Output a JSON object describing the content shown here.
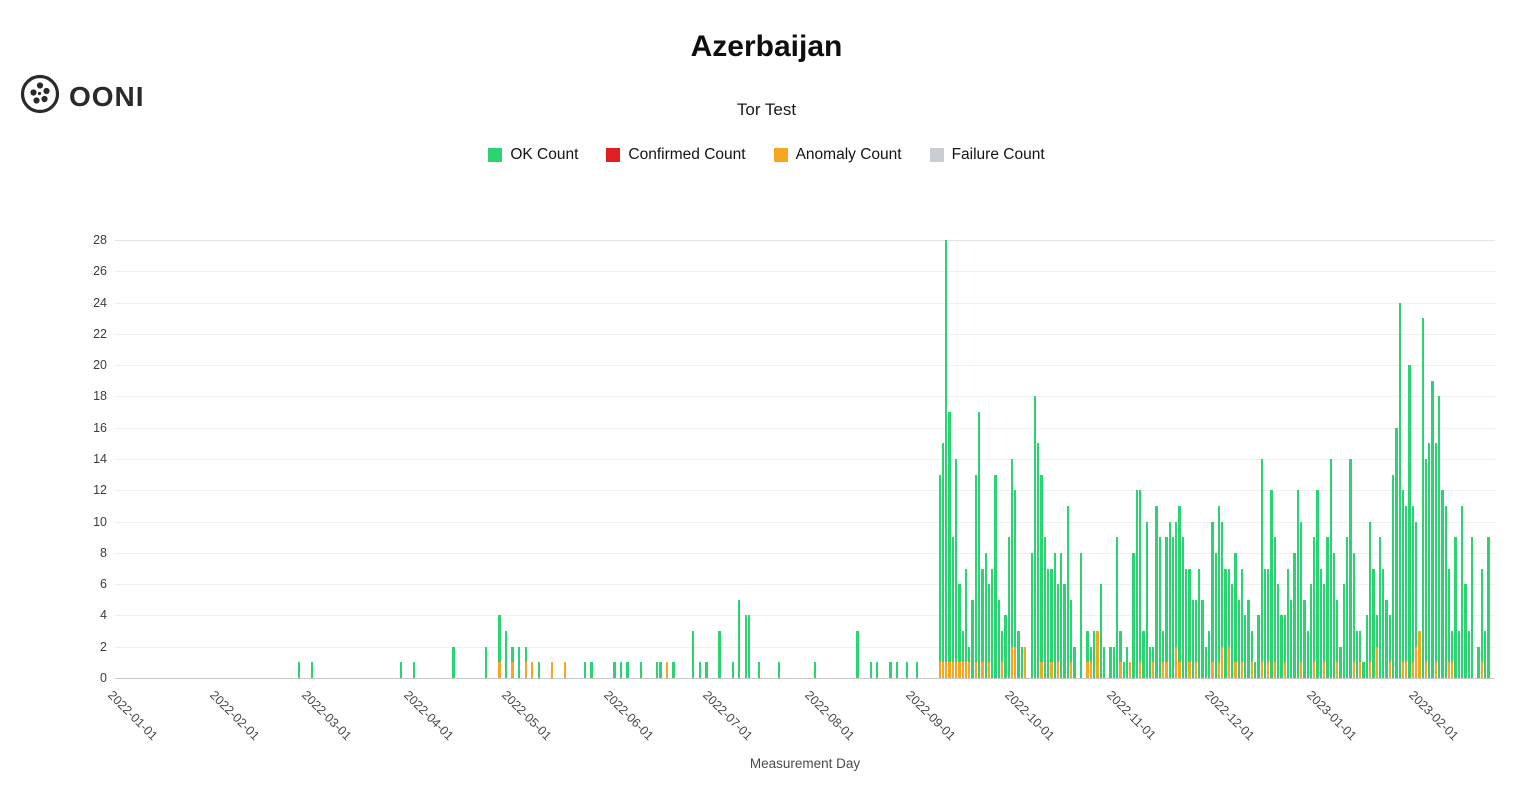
{
  "brand": {
    "name": "OONI"
  },
  "chart_data": {
    "type": "bar",
    "stacked": true,
    "title": "Azerbaijan",
    "subtitle": "Tor Test",
    "xlabel": "Measurement Day",
    "ylabel": "",
    "ylim": [
      0,
      28
    ],
    "yticks": [
      0,
      2,
      4,
      6,
      8,
      10,
      12,
      14,
      16,
      18,
      20,
      22,
      24,
      26,
      28
    ],
    "x_domain": [
      "2022-01-01",
      "2023-02-25"
    ],
    "x_ticks": [
      "2022-01-01",
      "2022-02-01",
      "2022-03-01",
      "2022-04-01",
      "2022-05-01",
      "2022-06-01",
      "2022-07-01",
      "2022-08-01",
      "2022-09-01",
      "2022-10-01",
      "2022-11-01",
      "2022-12-01",
      "2023-01-01",
      "2023-02-01"
    ],
    "grid": "horizontal-faint",
    "legend_position": "top",
    "series": [
      {
        "name": "OK Count",
        "key": "ok",
        "color": "#2bd472"
      },
      {
        "name": "Confirmed Count",
        "key": "confirmed",
        "color": "#e02020"
      },
      {
        "name": "Anomaly Count",
        "key": "anomaly",
        "color": "#f5a623"
      },
      {
        "name": "Failure Count",
        "key": "failure",
        "color": "#c9ced4"
      }
    ],
    "stack_order_bottom_to_top": [
      "anomaly",
      "ok"
    ],
    "points_format": [
      "date",
      "ok_count",
      "anomaly_count"
    ],
    "points": [
      [
        "2022-02-26",
        1,
        0
      ],
      [
        "2022-03-02",
        1,
        0
      ],
      [
        "2022-03-29",
        1,
        0
      ],
      [
        "2022-04-02",
        1,
        0
      ],
      [
        "2022-04-14",
        2,
        0
      ],
      [
        "2022-04-24",
        2,
        0
      ],
      [
        "2022-04-28",
        3,
        1
      ],
      [
        "2022-04-30",
        3,
        0
      ],
      [
        "2022-05-02",
        1,
        1
      ],
      [
        "2022-05-04",
        2,
        0
      ],
      [
        "2022-05-06",
        1,
        1
      ],
      [
        "2022-05-08",
        0,
        1
      ],
      [
        "2022-05-10",
        1,
        0
      ],
      [
        "2022-05-14",
        0,
        1
      ],
      [
        "2022-05-18",
        0,
        1
      ],
      [
        "2022-05-24",
        1,
        0
      ],
      [
        "2022-05-26",
        1,
        0
      ],
      [
        "2022-06-02",
        1,
        0
      ],
      [
        "2022-06-04",
        1,
        0
      ],
      [
        "2022-06-06",
        1,
        0
      ],
      [
        "2022-06-10",
        1,
        0
      ],
      [
        "2022-06-15",
        1,
        0
      ],
      [
        "2022-06-16",
        1,
        0
      ],
      [
        "2022-06-18",
        0,
        1
      ],
      [
        "2022-06-20",
        1,
        0
      ],
      [
        "2022-06-26",
        3,
        0
      ],
      [
        "2022-06-28",
        1,
        0
      ],
      [
        "2022-06-30",
        1,
        0
      ],
      [
        "2022-07-04",
        3,
        0
      ],
      [
        "2022-07-08",
        1,
        0
      ],
      [
        "2022-07-10",
        5,
        0
      ],
      [
        "2022-07-12",
        4,
        0
      ],
      [
        "2022-07-13",
        4,
        0
      ],
      [
        "2022-07-16",
        1,
        0
      ],
      [
        "2022-07-22",
        1,
        0
      ],
      [
        "2022-08-02",
        1,
        0
      ],
      [
        "2022-08-15",
        3,
        0
      ],
      [
        "2022-08-19",
        1,
        0
      ],
      [
        "2022-08-21",
        1,
        0
      ],
      [
        "2022-08-25",
        1,
        0
      ],
      [
        "2022-08-27",
        1,
        0
      ],
      [
        "2022-08-30",
        1,
        0
      ],
      [
        "2022-09-02",
        1,
        0
      ],
      [
        "2022-09-09",
        12,
        1
      ],
      [
        "2022-09-10",
        14,
        1
      ],
      [
        "2022-09-11",
        27,
        1
      ],
      [
        "2022-09-12",
        16,
        1
      ],
      [
        "2022-09-13",
        8,
        1
      ],
      [
        "2022-09-14",
        13,
        1
      ],
      [
        "2022-09-15",
        5,
        1
      ],
      [
        "2022-09-16",
        2,
        1
      ],
      [
        "2022-09-17",
        6,
        1
      ],
      [
        "2022-09-18",
        1,
        1
      ],
      [
        "2022-09-19",
        5,
        0
      ],
      [
        "2022-09-20",
        12,
        1
      ],
      [
        "2022-09-21",
        17,
        0
      ],
      [
        "2022-09-22",
        6,
        1
      ],
      [
        "2022-09-23",
        8,
        0
      ],
      [
        "2022-09-24",
        5,
        1
      ],
      [
        "2022-09-25",
        7,
        0
      ],
      [
        "2022-09-26",
        13,
        0
      ],
      [
        "2022-09-27",
        5,
        0
      ],
      [
        "2022-09-28",
        2,
        1
      ],
      [
        "2022-09-29",
        4,
        0
      ],
      [
        "2022-09-30",
        9,
        0
      ],
      [
        "2022-10-01",
        12,
        2
      ],
      [
        "2022-10-02",
        10,
        2
      ],
      [
        "2022-10-03",
        3,
        0
      ],
      [
        "2022-10-04",
        2,
        0
      ],
      [
        "2022-10-05",
        0,
        2
      ],
      [
        "2022-10-07",
        8,
        0
      ],
      [
        "2022-10-08",
        18,
        0
      ],
      [
        "2022-10-09",
        15,
        0
      ],
      [
        "2022-10-10",
        12,
        1
      ],
      [
        "2022-10-11",
        9,
        0
      ],
      [
        "2022-10-12",
        7,
        0
      ],
      [
        "2022-10-13",
        6,
        1
      ],
      [
        "2022-10-14",
        8,
        0
      ],
      [
        "2022-10-15",
        5,
        1
      ],
      [
        "2022-10-16",
        8,
        0
      ],
      [
        "2022-10-17",
        6,
        0
      ],
      [
        "2022-10-18",
        11,
        0
      ],
      [
        "2022-10-19",
        4,
        1
      ],
      [
        "2022-10-20",
        2,
        0
      ],
      [
        "2022-10-22",
        8,
        0
      ],
      [
        "2022-10-24",
        2,
        1
      ],
      [
        "2022-10-25",
        1,
        1
      ],
      [
        "2022-10-26",
        3,
        0
      ],
      [
        "2022-10-27",
        0,
        3
      ],
      [
        "2022-10-28",
        6,
        0
      ],
      [
        "2022-10-29",
        2,
        0
      ],
      [
        "2022-10-31",
        2,
        0
      ],
      [
        "2022-11-01",
        2,
        0
      ],
      [
        "2022-11-02",
        9,
        0
      ],
      [
        "2022-11-03",
        2,
        1
      ],
      [
        "2022-11-04",
        1,
        0
      ],
      [
        "2022-11-05",
        2,
        0
      ],
      [
        "2022-11-06",
        0,
        1
      ],
      [
        "2022-11-07",
        8,
        0
      ],
      [
        "2022-11-08",
        12,
        0
      ],
      [
        "2022-11-09",
        11,
        1
      ],
      [
        "2022-11-10",
        3,
        0
      ],
      [
        "2022-11-11",
        10,
        0
      ],
      [
        "2022-11-12",
        2,
        0
      ],
      [
        "2022-11-13",
        1,
        1
      ],
      [
        "2022-11-14",
        11,
        0
      ],
      [
        "2022-11-15",
        9,
        0
      ],
      [
        "2022-11-16",
        2,
        1
      ],
      [
        "2022-11-17",
        8,
        1
      ],
      [
        "2022-11-18",
        10,
        0
      ],
      [
        "2022-11-19",
        9,
        0
      ],
      [
        "2022-11-20",
        8,
        2
      ],
      [
        "2022-11-21",
        10,
        1
      ],
      [
        "2022-11-22",
        9,
        0
      ],
      [
        "2022-11-23",
        7,
        0
      ],
      [
        "2022-11-24",
        6,
        1
      ],
      [
        "2022-11-25",
        5,
        0
      ],
      [
        "2022-11-26",
        4,
        1
      ],
      [
        "2022-11-27",
        7,
        0
      ],
      [
        "2022-11-28",
        5,
        0
      ],
      [
        "2022-11-29",
        2,
        0
      ],
      [
        "2022-11-30",
        3,
        0
      ],
      [
        "2022-12-01",
        9,
        1
      ],
      [
        "2022-12-02",
        8,
        0
      ],
      [
        "2022-12-03",
        10,
        1
      ],
      [
        "2022-12-04",
        8,
        2
      ],
      [
        "2022-12-05",
        7,
        0
      ],
      [
        "2022-12-06",
        5,
        2
      ],
      [
        "2022-12-07",
        6,
        0
      ],
      [
        "2022-12-08",
        7,
        1
      ],
      [
        "2022-12-09",
        5,
        0
      ],
      [
        "2022-12-10",
        6,
        1
      ],
      [
        "2022-12-11",
        4,
        0
      ],
      [
        "2022-12-12",
        5,
        0
      ],
      [
        "2022-12-13",
        2,
        1
      ],
      [
        "2022-12-14",
        1,
        0
      ],
      [
        "2022-12-15",
        4,
        0
      ],
      [
        "2022-12-16",
        13,
        1
      ],
      [
        "2022-12-17",
        7,
        0
      ],
      [
        "2022-12-18",
        6,
        1
      ],
      [
        "2022-12-19",
        12,
        0
      ],
      [
        "2022-12-20",
        8,
        1
      ],
      [
        "2022-12-21",
        6,
        0
      ],
      [
        "2022-12-22",
        4,
        0
      ],
      [
        "2022-12-23",
        3,
        1
      ],
      [
        "2022-12-24",
        7,
        0
      ],
      [
        "2022-12-25",
        5,
        0
      ],
      [
        "2022-12-26",
        8,
        0
      ],
      [
        "2022-12-27",
        12,
        0
      ],
      [
        "2022-12-28",
        9,
        1
      ],
      [
        "2022-12-29",
        5,
        0
      ],
      [
        "2022-12-30",
        3,
        0
      ],
      [
        "2022-12-31",
        6,
        0
      ],
      [
        "2023-01-01",
        8,
        1
      ],
      [
        "2023-01-02",
        12,
        0
      ],
      [
        "2023-01-03",
        7,
        0
      ],
      [
        "2023-01-04",
        5,
        1
      ],
      [
        "2023-01-05",
        9,
        0
      ],
      [
        "2023-01-06",
        14,
        0
      ],
      [
        "2023-01-07",
        8,
        0
      ],
      [
        "2023-01-08",
        4,
        1
      ],
      [
        "2023-01-09",
        2,
        0
      ],
      [
        "2023-01-10",
        6,
        0
      ],
      [
        "2023-01-11",
        9,
        0
      ],
      [
        "2023-01-12",
        14,
        0
      ],
      [
        "2023-01-13",
        7,
        1
      ],
      [
        "2023-01-14",
        3,
        0
      ],
      [
        "2023-01-15",
        2,
        1
      ],
      [
        "2023-01-16",
        1,
        0
      ],
      [
        "2023-01-17",
        4,
        0
      ],
      [
        "2023-01-18",
        9,
        1
      ],
      [
        "2023-01-19",
        7,
        0
      ],
      [
        "2023-01-20",
        2,
        2
      ],
      [
        "2023-01-21",
        9,
        0
      ],
      [
        "2023-01-22",
        7,
        0
      ],
      [
        "2023-01-23",
        5,
        0
      ],
      [
        "2023-01-24",
        3,
        1
      ],
      [
        "2023-01-25",
        13,
        0
      ],
      [
        "2023-01-26",
        16,
        0
      ],
      [
        "2023-01-27",
        24,
        0
      ],
      [
        "2023-01-28",
        11,
        1
      ],
      [
        "2023-01-29",
        10,
        1
      ],
      [
        "2023-01-30",
        20,
        0
      ],
      [
        "2023-01-31",
        10,
        1
      ],
      [
        "2023-02-01",
        8,
        2
      ],
      [
        "2023-02-02",
        0,
        3
      ],
      [
        "2023-02-03",
        23,
        0
      ],
      [
        "2023-02-04",
        13,
        1
      ],
      [
        "2023-02-05",
        15,
        0
      ],
      [
        "2023-02-06",
        19,
        0
      ],
      [
        "2023-02-07",
        14,
        1
      ],
      [
        "2023-02-08",
        18,
        0
      ],
      [
        "2023-02-09",
        12,
        0
      ],
      [
        "2023-02-10",
        11,
        0
      ],
      [
        "2023-02-11",
        6,
        1
      ],
      [
        "2023-02-12",
        2,
        1
      ],
      [
        "2023-02-13",
        9,
        0
      ],
      [
        "2023-02-14",
        3,
        0
      ],
      [
        "2023-02-15",
        11,
        0
      ],
      [
        "2023-02-16",
        6,
        0
      ],
      [
        "2023-02-17",
        3,
        0
      ],
      [
        "2023-02-18",
        9,
        0
      ],
      [
        "2023-02-20",
        2,
        0
      ],
      [
        "2023-02-21",
        6,
        1
      ],
      [
        "2023-02-22",
        3,
        0
      ],
      [
        "2023-02-23",
        9,
        0
      ]
    ]
  }
}
